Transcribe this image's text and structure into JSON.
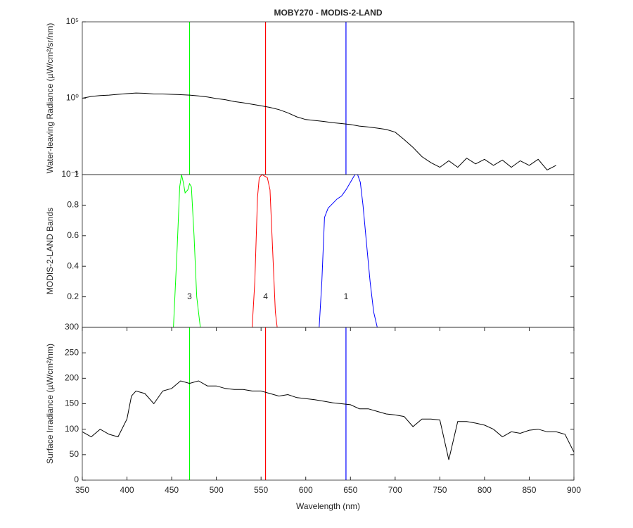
{
  "chart_data": [
    {
      "type": "line",
      "title": "MOBY270 - MODIS-2-LAND",
      "y_label": "Water-leaving Radiance (µW/cm²/sr/nm)",
      "log_y": true,
      "xlim": [
        350,
        900
      ],
      "ylim": [
        1e-05,
        100000
      ],
      "yticks": [
        {
          "value": 100000,
          "label": "10⁵"
        },
        {
          "value": 1,
          "label": "10⁰"
        },
        {
          "value": 1e-05,
          "label": "10⁻⁵"
        }
      ],
      "vlines": [
        {
          "x": 470,
          "color": "#00ff00"
        },
        {
          "x": 555,
          "color": "#ff0000"
        },
        {
          "x": 645,
          "color": "#0000ff"
        }
      ],
      "series": [
        {
          "color": "#000000",
          "x": [
            350,
            360,
            370,
            380,
            390,
            400,
            410,
            420,
            430,
            440,
            450,
            460,
            470,
            480,
            490,
            500,
            510,
            520,
            530,
            540,
            550,
            560,
            570,
            580,
            590,
            600,
            610,
            620,
            630,
            640,
            650,
            660,
            670,
            680,
            690,
            700,
            710,
            720,
            730,
            740,
            750,
            760,
            770,
            780,
            790,
            800,
            810,
            820,
            830,
            840,
            850,
            860,
            870,
            880
          ],
          "values": [
            1.0,
            1.3,
            1.5,
            1.6,
            1.8,
            2.0,
            2.2,
            2.1,
            1.9,
            1.9,
            1.8,
            1.7,
            1.6,
            1.4,
            1.2,
            0.95,
            0.8,
            0.6,
            0.5,
            0.4,
            0.32,
            0.25,
            0.18,
            0.11,
            0.06,
            0.04,
            0.035,
            0.03,
            0.025,
            0.022,
            0.019,
            0.015,
            0.013,
            0.011,
            0.009,
            0.006,
            0.002,
            0.0006,
            0.00015,
            6e-05,
            3e-05,
            8e-05,
            3e-05,
            0.00012,
            5e-05,
            0.0001,
            4e-05,
            9e-05,
            3e-05,
            8e-05,
            4e-05,
            0.0001,
            2e-05,
            4e-05
          ]
        }
      ]
    },
    {
      "type": "line",
      "y_label": "MODIS-2-LAND Bands",
      "xlim": [
        350,
        900
      ],
      "ylim": [
        0,
        1
      ],
      "yticks": [
        0.2,
        0.4,
        0.6,
        0.8,
        1
      ],
      "annotations": [
        {
          "text": "3",
          "x": 470,
          "y": 0.2
        },
        {
          "text": "4",
          "x": 555,
          "y": 0.2
        },
        {
          "text": "1",
          "x": 645,
          "y": 0.2
        }
      ],
      "series": [
        {
          "color": "#00ff00",
          "x": [
            452,
            456,
            459,
            461,
            463,
            465,
            468,
            470,
            472,
            475,
            478,
            482
          ],
          "values": [
            0,
            0.5,
            0.92,
            1.0,
            0.95,
            0.88,
            0.9,
            0.94,
            0.92,
            0.6,
            0.2,
            0
          ]
        },
        {
          "color": "#ff0000",
          "x": [
            540,
            543,
            546,
            548,
            551,
            554,
            557,
            560,
            563,
            566,
            568
          ],
          "values": [
            0,
            0.3,
            0.85,
            0.98,
            1.0,
            0.99,
            0.98,
            0.9,
            0.5,
            0.1,
            0
          ]
        },
        {
          "color": "#0000ff",
          "x": [
            615,
            618,
            621,
            625,
            630,
            635,
            640,
            645,
            650,
            655,
            658,
            661,
            664,
            668,
            672,
            676,
            680
          ],
          "values": [
            0,
            0.3,
            0.72,
            0.78,
            0.81,
            0.84,
            0.86,
            0.9,
            0.95,
            1.0,
            1.0,
            0.95,
            0.8,
            0.55,
            0.3,
            0.1,
            0
          ]
        }
      ]
    },
    {
      "type": "line",
      "y_label": "Surface Irradiance (µW/cm²/nm)",
      "x_label": "Wavelength (nm)",
      "xlim": [
        350,
        900
      ],
      "ylim": [
        0,
        300
      ],
      "yticks": [
        0,
        50,
        100,
        150,
        200,
        250,
        300
      ],
      "xticks": [
        350,
        400,
        450,
        500,
        550,
        600,
        650,
        700,
        750,
        800,
        850,
        900
      ],
      "vlines": [
        {
          "x": 470,
          "color": "#00ff00"
        },
        {
          "x": 555,
          "color": "#ff0000"
        },
        {
          "x": 645,
          "color": "#0000ff"
        }
      ],
      "series": [
        {
          "color": "#000000",
          "x": [
            350,
            360,
            370,
            380,
            390,
            400,
            405,
            410,
            420,
            430,
            440,
            450,
            460,
            470,
            480,
            490,
            500,
            510,
            520,
            530,
            540,
            550,
            560,
            570,
            580,
            590,
            600,
            610,
            620,
            630,
            640,
            650,
            660,
            670,
            680,
            690,
            700,
            710,
            720,
            730,
            740,
            750,
            760,
            770,
            780,
            790,
            800,
            810,
            820,
            830,
            840,
            850,
            860,
            870,
            880,
            890,
            900
          ],
          "values": [
            95,
            85,
            100,
            90,
            85,
            120,
            165,
            175,
            170,
            150,
            175,
            180,
            195,
            190,
            195,
            185,
            185,
            180,
            178,
            178,
            175,
            175,
            170,
            165,
            168,
            162,
            160,
            158,
            155,
            152,
            150,
            148,
            140,
            140,
            135,
            130,
            128,
            125,
            105,
            120,
            120,
            118,
            40,
            115,
            115,
            112,
            108,
            100,
            85,
            95,
            92,
            98,
            100,
            95,
            95,
            90,
            55
          ]
        }
      ]
    }
  ]
}
